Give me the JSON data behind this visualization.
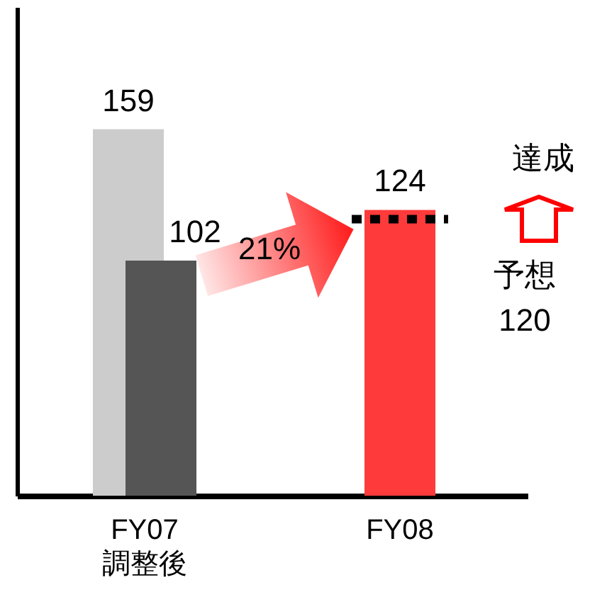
{
  "chart_data": {
    "type": "bar",
    "categories": [
      "FY07\n調整後",
      "FY08"
    ],
    "series": [
      {
        "color": "#cccccc",
        "values": [
          159,
          null
        ]
      },
      {
        "color": "#555555",
        "values": [
          102,
          null
        ]
      },
      {
        "color": "#ff3a3a",
        "values": [
          null,
          124
        ]
      }
    ],
    "ylim": [
      0,
      212
    ],
    "tick_labels": "x",
    "data_labels": true,
    "ref_lines": [
      {
        "axis": "y",
        "value": 120,
        "label": "予想\n120",
        "color": "#000000",
        "line_style": "dotted"
      }
    ],
    "annotations": [
      "21%",
      "達成"
    ]
  }
}
